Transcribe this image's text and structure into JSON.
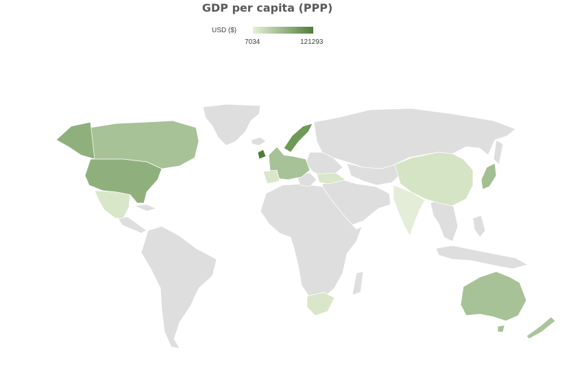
{
  "title": "GDP per capita (PPP)",
  "legend": {
    "unit_label": "USD ($)",
    "min_label": "7034",
    "max_label": "121293",
    "color_min": "#e6f0d8",
    "color_max": "#4e7e35"
  },
  "map": {
    "type": "choropleth",
    "no_data_color": "#dedede",
    "shaded_regions": [
      {
        "name": "Canada",
        "color": "#a6c296"
      },
      {
        "name": "United States",
        "color": "#8fb07c"
      },
      {
        "name": "Mexico",
        "color": "#d9e6c9"
      },
      {
        "name": "Ireland",
        "color": "#4e7e35"
      },
      {
        "name": "Norway",
        "color": "#6e9a58"
      },
      {
        "name": "China",
        "color": "#d5e4c5"
      },
      {
        "name": "India",
        "color": "#e3edd7"
      },
      {
        "name": "Japan",
        "color": "#a3bf91"
      },
      {
        "name": "South Africa",
        "color": "#d9e6c9"
      },
      {
        "name": "Australia",
        "color": "#a6c296"
      },
      {
        "name": "New Zealand",
        "color": "#a9c59a"
      }
    ]
  }
}
